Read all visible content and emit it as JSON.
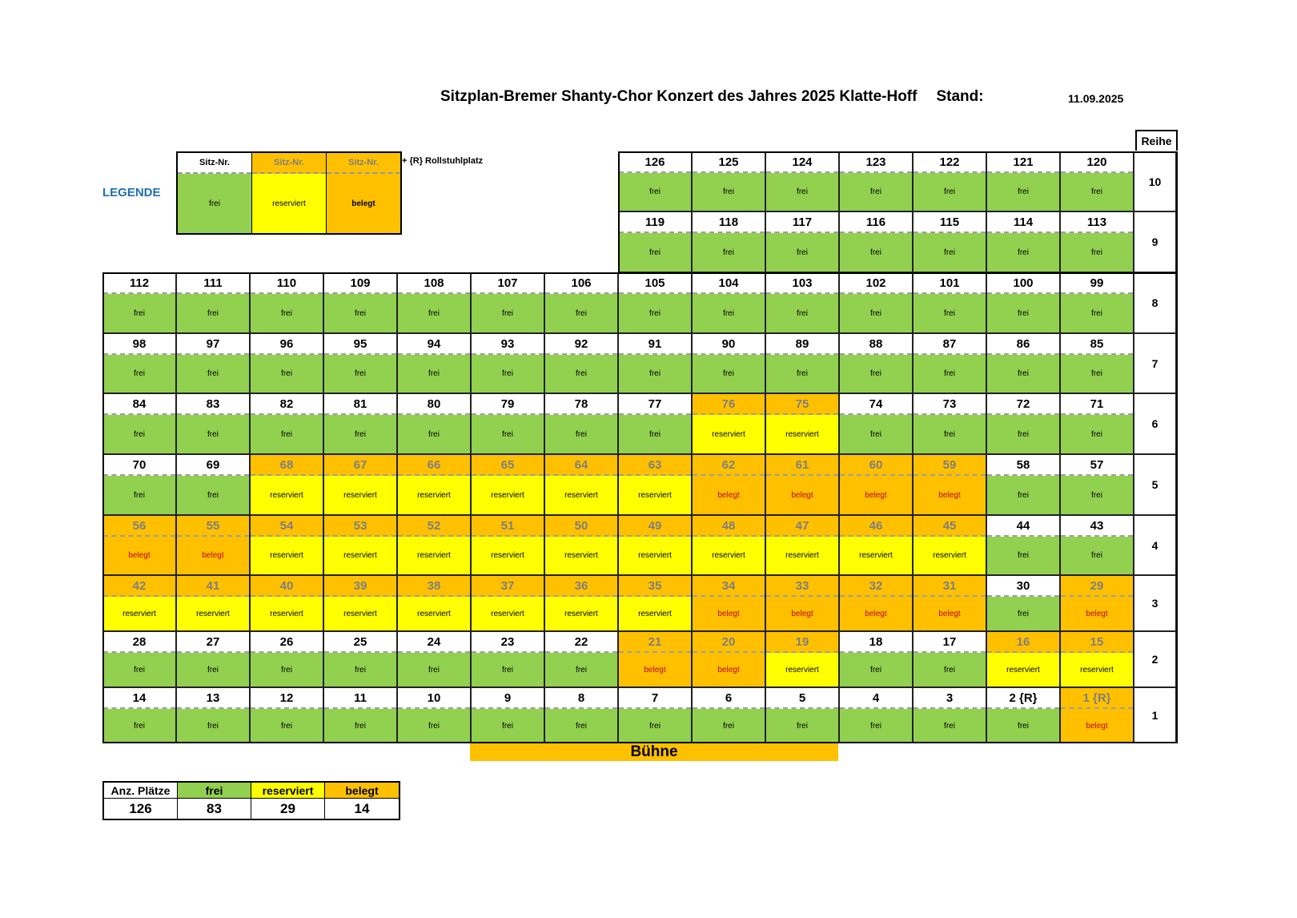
{
  "title": "Sitzplan-Bremer Shanty-Chor Konzert des Jahres  2025 Klatte-Hoff",
  "stand_label": "Stand:",
  "date": "11.09.2025",
  "reihe_header": "Reihe",
  "legend": {
    "label": "LEGENDE",
    "items": [
      {
        "num": "Sitz-Nr.",
        "status": "frei",
        "type": "frei"
      },
      {
        "num": "Sitz-Nr.",
        "status": "reserviert",
        "type": "reserviert"
      },
      {
        "num": "Sitz-Nr.",
        "status": "belegt",
        "type": "belegt"
      }
    ],
    "note": "+ {R}   Rollstuhlplatz"
  },
  "status_text": {
    "frei": "frei",
    "reserviert": "reserviert",
    "belegt": "belegt"
  },
  "rows": [
    {
      "reihe": "10",
      "seats": [
        [
          "126",
          "frei"
        ],
        [
          "125",
          "frei"
        ],
        [
          "124",
          "frei"
        ],
        [
          "123",
          "frei"
        ],
        [
          "122",
          "frei"
        ],
        [
          "121",
          "frei"
        ],
        [
          "120",
          "frei"
        ]
      ]
    },
    {
      "reihe": "9",
      "seats": [
        [
          "119",
          "frei"
        ],
        [
          "118",
          "frei"
        ],
        [
          "117",
          "frei"
        ],
        [
          "116",
          "frei"
        ],
        [
          "115",
          "frei"
        ],
        [
          "114",
          "frei"
        ],
        [
          "113",
          "frei"
        ]
      ]
    },
    {
      "reihe": "8",
      "seats": [
        [
          "112",
          "frei"
        ],
        [
          "111",
          "frei"
        ],
        [
          "110",
          "frei"
        ],
        [
          "109",
          "frei"
        ],
        [
          "108",
          "frei"
        ],
        [
          "107",
          "frei"
        ],
        [
          "106",
          "frei"
        ],
        [
          "105",
          "frei"
        ],
        [
          "104",
          "frei"
        ],
        [
          "103",
          "frei"
        ],
        [
          "102",
          "frei"
        ],
        [
          "101",
          "frei"
        ],
        [
          "100",
          "frei"
        ],
        [
          "99",
          "frei"
        ]
      ]
    },
    {
      "reihe": "7",
      "seats": [
        [
          "98",
          "frei"
        ],
        [
          "97",
          "frei"
        ],
        [
          "96",
          "frei"
        ],
        [
          "95",
          "frei"
        ],
        [
          "94",
          "frei"
        ],
        [
          "93",
          "frei"
        ],
        [
          "92",
          "frei"
        ],
        [
          "91",
          "frei"
        ],
        [
          "90",
          "frei"
        ],
        [
          "89",
          "frei"
        ],
        [
          "88",
          "frei"
        ],
        [
          "87",
          "frei"
        ],
        [
          "86",
          "frei"
        ],
        [
          "85",
          "frei"
        ]
      ]
    },
    {
      "reihe": "6",
      "seats": [
        [
          "84",
          "frei"
        ],
        [
          "83",
          "frei"
        ],
        [
          "82",
          "frei"
        ],
        [
          "81",
          "frei"
        ],
        [
          "80",
          "frei"
        ],
        [
          "79",
          "frei"
        ],
        [
          "78",
          "frei"
        ],
        [
          "77",
          "frei"
        ],
        [
          "76",
          "reserviert"
        ],
        [
          "75",
          "reserviert"
        ],
        [
          "74",
          "frei"
        ],
        [
          "73",
          "frei"
        ],
        [
          "72",
          "frei"
        ],
        [
          "71",
          "frei"
        ]
      ]
    },
    {
      "reihe": "5",
      "seats": [
        [
          "70",
          "frei"
        ],
        [
          "69",
          "frei"
        ],
        [
          "68",
          "reserviert"
        ],
        [
          "67",
          "reserviert"
        ],
        [
          "66",
          "reserviert"
        ],
        [
          "65",
          "reserviert"
        ],
        [
          "64",
          "reserviert"
        ],
        [
          "63",
          "reserviert"
        ],
        [
          "62",
          "belegt"
        ],
        [
          "61",
          "belegt"
        ],
        [
          "60",
          "belegt"
        ],
        [
          "59",
          "belegt"
        ],
        [
          "58",
          "frei"
        ],
        [
          "57",
          "frei"
        ]
      ]
    },
    {
      "reihe": "4",
      "seats": [
        [
          "56",
          "belegt"
        ],
        [
          "55",
          "belegt"
        ],
        [
          "54",
          "reserviert"
        ],
        [
          "53",
          "reserviert"
        ],
        [
          "52",
          "reserviert"
        ],
        [
          "51",
          "reserviert"
        ],
        [
          "50",
          "reserviert"
        ],
        [
          "49",
          "reserviert"
        ],
        [
          "48",
          "reserviert"
        ],
        [
          "47",
          "reserviert"
        ],
        [
          "46",
          "reserviert"
        ],
        [
          "45",
          "reserviert"
        ],
        [
          "44",
          "frei"
        ],
        [
          "43",
          "frei"
        ]
      ]
    },
    {
      "reihe": "3",
      "seats": [
        [
          "42",
          "reserviert"
        ],
        [
          "41",
          "reserviert"
        ],
        [
          "40",
          "reserviert"
        ],
        [
          "39",
          "reserviert"
        ],
        [
          "38",
          "reserviert"
        ],
        [
          "37",
          "reserviert"
        ],
        [
          "36",
          "reserviert"
        ],
        [
          "35",
          "reserviert"
        ],
        [
          "34",
          "belegt"
        ],
        [
          "33",
          "belegt"
        ],
        [
          "32",
          "belegt"
        ],
        [
          "31",
          "belegt"
        ],
        [
          "30",
          "frei"
        ],
        [
          "29",
          "belegt"
        ]
      ]
    },
    {
      "reihe": "2",
      "seats": [
        [
          "28",
          "frei"
        ],
        [
          "27",
          "frei"
        ],
        [
          "26",
          "frei"
        ],
        [
          "25",
          "frei"
        ],
        [
          "24",
          "frei"
        ],
        [
          "23",
          "frei"
        ],
        [
          "22",
          "frei"
        ],
        [
          "21",
          "belegt"
        ],
        [
          "20",
          "belegt"
        ],
        [
          "19",
          "reserviert"
        ],
        [
          "18",
          "frei"
        ],
        [
          "17",
          "frei"
        ],
        [
          "16",
          "reserviert"
        ],
        [
          "15",
          "reserviert"
        ]
      ]
    },
    {
      "reihe": "1",
      "seats": [
        [
          "14",
          "frei"
        ],
        [
          "13",
          "frei"
        ],
        [
          "12",
          "frei"
        ],
        [
          "11",
          "frei"
        ],
        [
          "10",
          "frei"
        ],
        [
          "9",
          "frei"
        ],
        [
          "8",
          "frei"
        ],
        [
          "7",
          "frei"
        ],
        [
          "6",
          "frei"
        ],
        [
          "5",
          "frei"
        ],
        [
          "4",
          "frei"
        ],
        [
          "3",
          "frei"
        ],
        [
          "2 {R}",
          "frei"
        ],
        [
          "1 {R}",
          "belegt"
        ]
      ]
    }
  ],
  "stage": "Bühne",
  "summary": {
    "headers": [
      "Anz. Plätze",
      "frei",
      "reserviert",
      "belegt"
    ],
    "values": [
      "126",
      "83",
      "29",
      "14"
    ]
  }
}
